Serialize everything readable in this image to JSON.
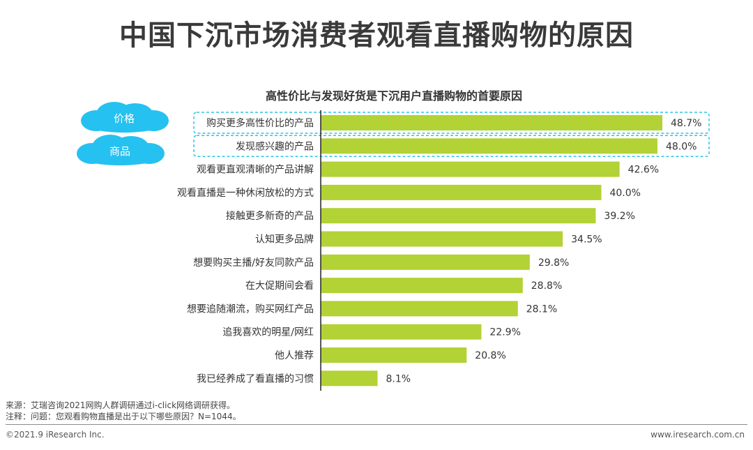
{
  "page": {
    "title": "中国下沉市场消费者观看直播购物的原因",
    "source_note": "来源：艾瑞咨询2021网购人群调研通过i-click网络调研获得。",
    "remark_note": "注释：问题：您观看购物直播是出于以下哪些原因？N=1044。",
    "copyright": "©2021.9 iResearch Inc.",
    "website": "www.iresearch.com.cn"
  },
  "colors": {
    "bar": "#b2d235",
    "cloud": "#25c1f0",
    "highlight_border": "#2ec4e8",
    "axis": "#222222"
  },
  "highlights": [
    {
      "label": "价格",
      "category_index": 0
    },
    {
      "label": "商品",
      "category_index": 1
    }
  ],
  "chart_data": {
    "type": "bar",
    "orientation": "horizontal",
    "title": "高性价比与发现好货是下沉用户直播购物的首要原因",
    "unit": "%",
    "xlim": [
      0,
      50
    ],
    "categories": [
      "购买更多高性价比的产品",
      "发现感兴趣的产品",
      "观看更直观清晰的产品讲解",
      "观看直播是一种休闲放松的方式",
      "接触更多新奇的产品",
      "认知更多品牌",
      "想要购买主播/好友同款产品",
      "在大促期间会看",
      "想要追随潮流，购买网红产品",
      "追我喜欢的明星/网红",
      "他人推荐",
      "我已经养成了看直播的习惯"
    ],
    "values": [
      48.7,
      48.0,
      42.6,
      40.0,
      39.2,
      34.5,
      29.8,
      28.8,
      28.1,
      22.9,
      20.8,
      8.1
    ],
    "value_labels": [
      "48.7%",
      "48.0%",
      "42.6%",
      "40.0%",
      "39.2%",
      "34.5%",
      "29.8%",
      "28.8%",
      "28.1%",
      "22.9%",
      "20.8%",
      "8.1%"
    ]
  }
}
